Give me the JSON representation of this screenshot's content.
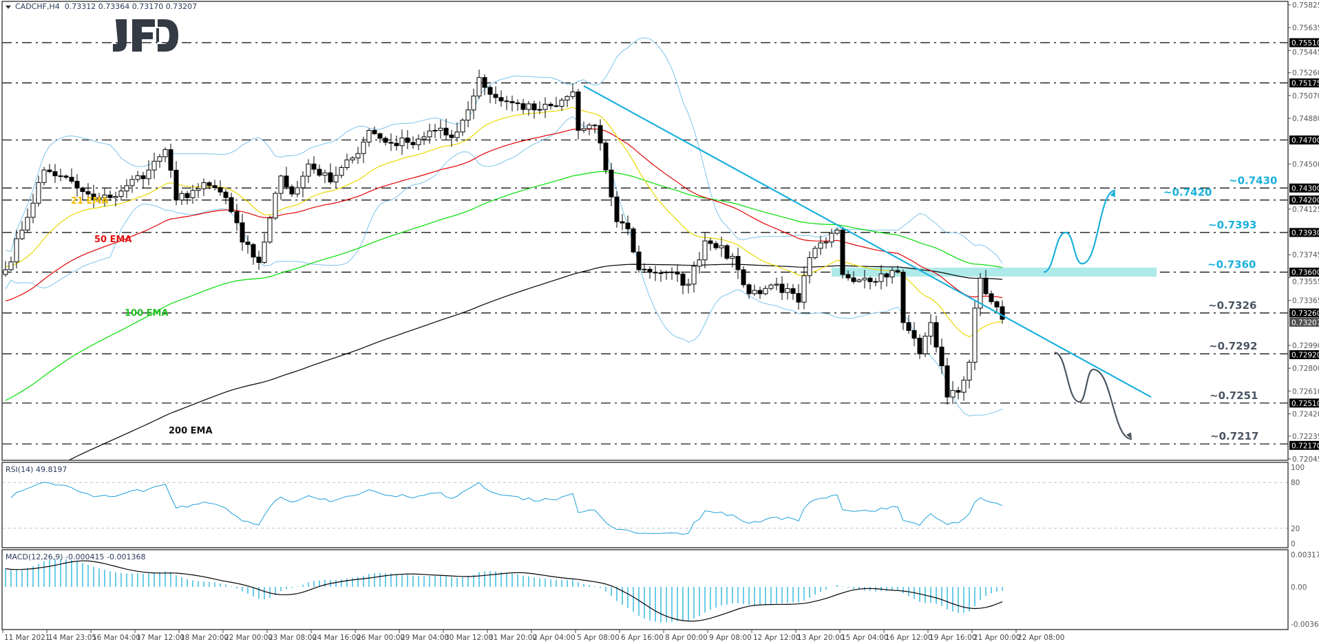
{
  "header": {
    "symbol": "CADCHF,H4",
    "ohlc": "0.73312 0.73364 0.73170 0.73207"
  },
  "logo": "JFD",
  "price_axis": {
    "ticks": [
      "0.75825",
      "0.75635",
      "0.75445",
      "0.75260",
      "0.75070",
      "0.74880",
      "0.74500",
      "0.74125",
      "0.73745",
      "0.73555",
      "0.73365",
      "0.72990",
      "0.72800",
      "0.72610",
      "0.72420",
      "0.72235",
      "0.72045"
    ],
    "level_tags": [
      "0.75510",
      "0.75175",
      "0.74700",
      "0.74300",
      "0.74200",
      "0.73930",
      "0.73600",
      "0.73260",
      "0.72920",
      "0.72510",
      "0.72170"
    ],
    "current_price": "0.73207"
  },
  "rsi": {
    "label": "RSI(14) 49.8197",
    "ticks": [
      "100",
      "80",
      "20",
      "0"
    ]
  },
  "macd": {
    "label": "MACD(12,26,9) -0.000415 -0.001368",
    "ticks": [
      "0.003174",
      "0.00",
      "-0.003632"
    ]
  },
  "time_axis": [
    "11 Mar 2021",
    "14 Mar 23:05",
    "16 Mar 04:00",
    "17 Mar 12:00",
    "18 Mar 20:00",
    "22 Mar 00:00",
    "23 Mar 08:00",
    "24 Mar 16:00",
    "26 Mar 00:00",
    "29 Mar 04:00",
    "30 Mar 12:00",
    "31 Mar 20:00",
    "2 Apr 04:00",
    "5 Apr 08:00",
    "6 Apr 16:00",
    "8 Apr 00:00",
    "9 Apr 08:00",
    "12 Apr 12:00",
    "13 Apr 20:00",
    "15 Apr 04:00",
    "16 Apr 12:00",
    "19 Apr 16:00",
    "21 Apr 00:00",
    "22 Apr 08:00"
  ],
  "ema_labels": [
    {
      "text": "21 EMA",
      "color": "#f0c000"
    },
    {
      "text": "50 EMA",
      "color": "#e01010"
    },
    {
      "text": "100 EMA",
      "color": "#22c022"
    },
    {
      "text": "200 EMA",
      "color": "#111111"
    }
  ],
  "level_labels": [
    {
      "text": "~0.7430",
      "color": "#1ab0dc"
    },
    {
      "text": "~0.7420",
      "color": "#1ab0dc"
    },
    {
      "text": "~0.7393",
      "color": "#1ab0dc"
    },
    {
      "text": "~0.7360",
      "color": "#1ab0dc"
    },
    {
      "text": "~0.7326",
      "color": "#4a5562"
    },
    {
      "text": "~0.7292",
      "color": "#4a5562"
    },
    {
      "text": "~0.7251",
      "color": "#4a5562"
    },
    {
      "text": "~0.7217",
      "color": "#4a5562"
    }
  ],
  "colors": {
    "ema21": "#e8d800",
    "ema50": "#e00000",
    "ema100": "#00dd00",
    "ema200": "#000000",
    "bands": "#7cc4ea",
    "rsi": "#1ea0d8",
    "macd_hist": "#1ab0dc",
    "annot_up": "#1ab0dc",
    "annot_down": "#4a5562",
    "zone": "#aeeaea"
  },
  "chart_data": {
    "type": "candlestick",
    "title": "CADCHF,H4",
    "timeframe": "H4",
    "last_ohlc": [
      0.73312,
      0.73364,
      0.7317,
      0.73207
    ],
    "ylim": [
      0.72045,
      0.75825
    ],
    "close_keypoints": [
      [
        0,
        0.7362
      ],
      [
        3,
        0.7395
      ],
      [
        7,
        0.7445
      ],
      [
        10,
        0.744
      ],
      [
        13,
        0.743
      ],
      [
        16,
        0.742
      ],
      [
        19,
        0.7422
      ],
      [
        22,
        0.7432
      ],
      [
        26,
        0.7445
      ],
      [
        29,
        0.7462
      ],
      [
        31,
        0.742
      ],
      [
        34,
        0.7428
      ],
      [
        37,
        0.7432
      ],
      [
        40,
        0.7422
      ],
      [
        43,
        0.7385
      ],
      [
        46,
        0.7368
      ],
      [
        48,
        0.7405
      ],
      [
        50,
        0.744
      ],
      [
        52,
        0.7425
      ],
      [
        55,
        0.745
      ],
      [
        59,
        0.7435
      ],
      [
        63,
        0.7455
      ],
      [
        66,
        0.7478
      ],
      [
        69,
        0.7468
      ],
      [
        73,
        0.7468
      ],
      [
        78,
        0.7478
      ],
      [
        81,
        0.7472
      ],
      [
        84,
        0.7495
      ],
      [
        86,
        0.7522
      ],
      [
        88,
        0.7508
      ],
      [
        91,
        0.7502
      ],
      [
        96,
        0.7495
      ],
      [
        100,
        0.7498
      ],
      [
        103,
        0.751
      ],
      [
        104,
        0.7478
      ],
      [
        107,
        0.7482
      ],
      [
        109,
        0.7445
      ],
      [
        111,
        0.7402
      ],
      [
        113,
        0.7396
      ],
      [
        115,
        0.7362
      ],
      [
        120,
        0.736
      ],
      [
        124,
        0.735
      ],
      [
        127,
        0.7386
      ],
      [
        130,
        0.7382
      ],
      [
        133,
        0.7362
      ],
      [
        135,
        0.7342
      ],
      [
        140,
        0.735
      ],
      [
        144,
        0.7335
      ],
      [
        146,
        0.7372
      ],
      [
        149,
        0.7385
      ],
      [
        151,
        0.7395
      ],
      [
        152,
        0.7358
      ],
      [
        156,
        0.7355
      ],
      [
        162,
        0.736
      ],
      [
        163,
        0.7318
      ],
      [
        165,
        0.7305
      ],
      [
        166,
        0.7292
      ],
      [
        168,
        0.7318
      ],
      [
        170,
        0.7282
      ],
      [
        171,
        0.7256
      ],
      [
        173,
        0.726
      ],
      [
        175,
        0.7285
      ],
      [
        176,
        0.733
      ],
      [
        177,
        0.7355
      ],
      [
        178,
        0.7342
      ],
      [
        180,
        0.7331
      ],
      [
        181,
        0.73207
      ]
    ],
    "horizontal_levels": [
      0.7551,
      0.75175,
      0.747,
      0.743,
      0.742,
      0.7393,
      0.736,
      0.7326,
      0.7292,
      0.7251,
      0.7217
    ],
    "indicators": [
      "EMA 21",
      "EMA 50",
      "EMA 100",
      "EMA 200",
      "Bollinger Bands",
      "RSI(14)",
      "MACD(12,26,9)"
    ],
    "rsi_levels": [
      80,
      20
    ],
    "rsi_range": [
      0,
      100
    ],
    "macd_range": [
      -0.003632,
      0.003174
    ],
    "trendline": [
      [
        105,
        0.7515
      ],
      [
        208,
        0.7256
      ]
    ],
    "zone": {
      "from_candle": 150,
      "to_candle": 209,
      "low": 0.73585,
      "high": 0.73615
    },
    "scenario_up": [
      [
        188.5,
        0.736
      ],
      [
        192.5,
        0.7393
      ],
      [
        195.5,
        0.7367
      ],
      [
        201.5,
        0.7428
      ]
    ],
    "scenario_down": [
      [
        190.5,
        0.7293
      ],
      [
        195,
        0.7252
      ],
      [
        197.5,
        0.7279
      ],
      [
        204.5,
        0.7221
      ]
    ]
  }
}
